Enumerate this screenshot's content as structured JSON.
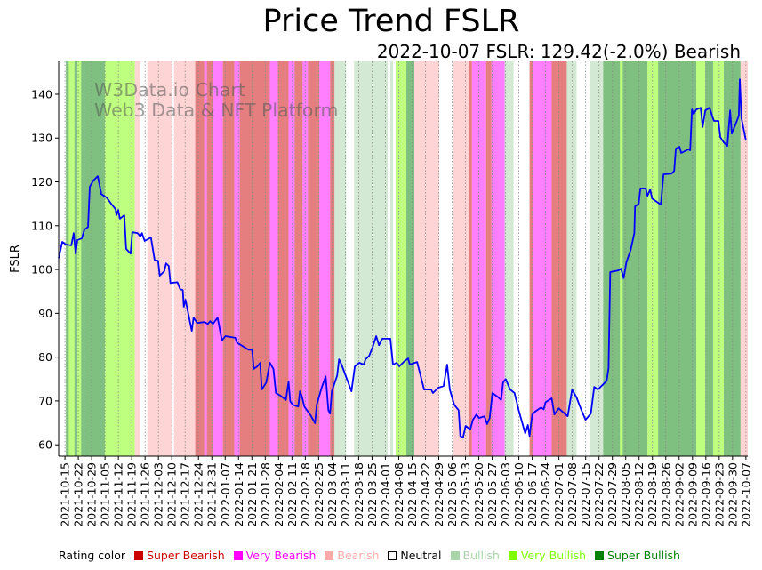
{
  "chart_data": {
    "type": "line",
    "title": "Price Trend FSLR",
    "subtitle": "2022-10-07 FSLR: 129.42(-2.0%) Bearish",
    "ylabel": "FSLR",
    "xlabel": "",
    "watermark": [
      "W3Data.io Chart",
      "Web3 Data & NFT Platform"
    ],
    "ylim": [
      57.4,
      147.5
    ],
    "xlim_day_offset": [
      -3.3,
      358
    ],
    "yticks": [
      60,
      70,
      80,
      90,
      100,
      110,
      120,
      130,
      140
    ],
    "xtick_labels": [
      "2021-10-15",
      "2021-10-22",
      "2021-10-29",
      "2021-11-05",
      "2021-11-12",
      "2021-11-19",
      "2021-11-26",
      "2021-12-03",
      "2021-12-10",
      "2021-12-17",
      "2021-12-24",
      "2021-12-31",
      "2022-01-07",
      "2022-01-14",
      "2022-01-21",
      "2022-01-28",
      "2022-02-04",
      "2022-02-11",
      "2022-02-18",
      "2022-02-25",
      "2022-03-04",
      "2022-03-11",
      "2022-03-18",
      "2022-03-25",
      "2022-04-01",
      "2022-04-08",
      "2022-04-15",
      "2022-04-22",
      "2022-04-29",
      "2022-05-06",
      "2022-05-13",
      "2022-05-20",
      "2022-05-27",
      "2022-06-03",
      "2022-06-10",
      "2022-06-17",
      "2022-06-24",
      "2022-07-01",
      "2022-07-08",
      "2022-07-15",
      "2022-07-22",
      "2022-07-29",
      "2022-08-05",
      "2022-08-12",
      "2022-08-19",
      "2022-08-26",
      "2022-09-02",
      "2022-09-09",
      "2022-09-16",
      "2022-09-23",
      "2022-09-30",
      "2022-10-07"
    ],
    "xtick_step_days": 7,
    "grid": "x dotted",
    "series": [
      {
        "name": "FSLR",
        "color": "#0000ff",
        "day_offset_from_first_tick": [
          -3.3,
          -1.4,
          0.5,
          3.3,
          4.6,
          5.6,
          6.5,
          8.8,
          10.2,
          12.1,
          13.0,
          14.9,
          17.2,
          19.1,
          21.9,
          24.6,
          26.5,
          27.0,
          27.9,
          28.8,
          31.1,
          32.1,
          34.4,
          35.3,
          38.1,
          39.5,
          40.4,
          41.8,
          45.1,
          47.0,
          48.8,
          49.7,
          52.1,
          53.0,
          54.4,
          55.3,
          59.0,
          60.4,
          61.8,
          62.3,
          63.2,
          66.5,
          67.4,
          69.3,
          73.0,
          74.9,
          76.2,
          77.6,
          80.0,
          82.3,
          84.1,
          89.3,
          90.2,
          91.6,
          96.2,
          98.1,
          99.0,
          100.9,
          102.3,
          103.2,
          105.5,
          107.4,
          109.3,
          110.6,
          113.0,
          115.8,
          117.2,
          118.1,
          119.5,
          122.3,
          123.2,
          124.1,
          125.5,
          128.8,
          131.1,
          132.0,
          134.4,
          136.7,
          138.1,
          139.0,
          139.9,
          142.7,
          143.7,
          145.0,
          150.2,
          152.0,
          154.3,
          156.7,
          157.6,
          159.5,
          161.3,
          163.2,
          164.6,
          166.4,
          170.6,
          172.0,
          173.9,
          175.3,
          177.6,
          179.9,
          180.8,
          184.6,
          188.3,
          192.0,
          192.9,
          195.7,
          198.5,
          200.4,
          201.8,
          204.1,
          206.4,
          207.3,
          208.7,
          210.1,
          212.5,
          213.9,
          215.7,
          217.1,
          219.9,
          221.3,
          222.7,
          224.1,
          227.3,
          228.7,
          229.7,
          231.1,
          233.4,
          235.7,
          238.0,
          241.3,
          242.7,
          243.6,
          245.0,
          246.9,
          249.7,
          251.0,
          252.0,
          255.2,
          256.6,
          258.9,
          263.6,
          265.9,
          268.2,
          270.6,
          272.9,
          275.7,
          277.5,
          279.4,
          282.2,
          284.0,
          285.0,
          285.9,
          290.1,
          291.5,
          292.9,
          294.3,
          296.6,
          298.5,
          298.9,
          300.8,
          301.7,
          304.5,
          305.4,
          306.8,
          307.8,
          312.4,
          313.8,
          318.0,
          319.4,
          320.3,
          322.2,
          323.1,
          326.8,
          327.8,
          328.7,
          329.6,
          331.0,
          333.3,
          334.3,
          335.7,
          338.0,
          339.4,
          340.3,
          342.6,
          343.6,
          345.4,
          347.3,
          348.7,
          349.6,
          351.9,
          353.3,
          353.8,
          354.7,
          357.0
        ],
        "values": [
          102.6,
          106.3,
          105.7,
          105.5,
          108.3,
          103.6,
          106.7,
          107.1,
          109.1,
          109.7,
          118.9,
          120.3,
          121.3,
          117.2,
          116.4,
          114.8,
          113.8,
          112.4,
          113.6,
          111.6,
          112.4,
          104.7,
          103.6,
          108.5,
          108.3,
          107.5,
          108.3,
          106.5,
          107.3,
          102.2,
          102.0,
          98.6,
          99.6,
          101.4,
          100.8,
          96.9,
          97.1,
          95.5,
          95.3,
          91.5,
          93.1,
          86.0,
          89.0,
          87.8,
          88.0,
          87.6,
          88.2,
          87.6,
          89.0,
          83.8,
          84.8,
          84.4,
          83.3,
          82.9,
          81.7,
          81.7,
          77.3,
          77.9,
          78.7,
          72.6,
          74.2,
          78.7,
          77.3,
          71.8,
          71.2,
          70.2,
          74.4,
          69.9,
          69.1,
          68.7,
          72.2,
          71.2,
          68.7,
          66.7,
          64.9,
          69.1,
          72.8,
          75.6,
          67.9,
          67.1,
          72.2,
          75.8,
          79.5,
          78.3,
          72.2,
          77.9,
          78.7,
          78.3,
          79.5,
          80.3,
          82.3,
          84.8,
          82.7,
          84.2,
          84.2,
          78.3,
          78.7,
          77.9,
          78.9,
          79.7,
          78.3,
          78.9,
          72.6,
          72.6,
          71.8,
          73.0,
          73.4,
          78.3,
          72.6,
          69.1,
          67.9,
          62.0,
          61.6,
          64.3,
          63.5,
          65.7,
          66.9,
          66.1,
          66.5,
          64.7,
          66.1,
          71.8,
          70.8,
          70.2,
          74.2,
          75.0,
          72.6,
          71.8,
          67.7,
          62.6,
          64.5,
          62.0,
          66.9,
          67.7,
          68.5,
          68.1,
          69.7,
          70.6,
          66.9,
          68.3,
          66.5,
          72.6,
          70.8,
          68.1,
          65.7,
          67.1,
          73.2,
          72.6,
          73.8,
          74.6,
          77.5,
          99.4,
          99.8,
          100.2,
          98.0,
          101.6,
          104.5,
          108.3,
          114.4,
          115.0,
          118.5,
          118.5,
          116.8,
          118.3,
          116.2,
          114.8,
          121.7,
          121.9,
          122.5,
          127.6,
          128.0,
          126.6,
          127.4,
          127.2,
          136.5,
          135.5,
          136.5,
          136.9,
          132.5,
          136.3,
          136.9,
          134.9,
          133.9,
          133.9,
          130.2,
          129.0,
          128.2,
          136.3,
          131.0,
          133.5,
          135.1,
          143.4,
          134.5,
          129.4
        ]
      }
    ],
    "rating_bands": [
      [
        0.5,
        2,
        "Super Bullish"
      ],
      [
        2,
        5,
        "Very Bullish"
      ],
      [
        5,
        6.5,
        "Super Bullish"
      ],
      [
        6.5,
        8.5,
        "Very Bullish"
      ],
      [
        8.5,
        20.9,
        "Super Bullish"
      ],
      [
        20.9,
        36.7,
        "Very Bullish"
      ],
      [
        36.7,
        39.5,
        "Bearish"
      ],
      [
        39.5,
        43.2,
        "Neutral"
      ],
      [
        43.2,
        55.8,
        "Bearish"
      ],
      [
        55.8,
        57.2,
        "Neutral"
      ],
      [
        57.2,
        68.3,
        "Bearish"
      ],
      [
        68.3,
        73,
        "Super Bearish"
      ],
      [
        73,
        74.4,
        "Very Bearish"
      ],
      [
        74.4,
        77.6,
        "Super Bearish"
      ],
      [
        77.6,
        82.8,
        "Very Bearish"
      ],
      [
        82.8,
        88.8,
        "Super Bearish"
      ],
      [
        88.8,
        91.6,
        "Very Bearish"
      ],
      [
        91.6,
        107.4,
        "Super Bearish"
      ],
      [
        107.4,
        111.6,
        "Very Bearish"
      ],
      [
        111.6,
        117.2,
        "Super Bearish"
      ],
      [
        117.2,
        120.4,
        "Very Bearish"
      ],
      [
        120.4,
        124.6,
        "Super Bearish"
      ],
      [
        124.6,
        127.4,
        "Very Bearish"
      ],
      [
        127.4,
        133.4,
        "Super Bearish"
      ],
      [
        133.4,
        139,
        "Very Bearish"
      ],
      [
        139,
        141.3,
        "Super Bearish"
      ],
      [
        141.3,
        147.4,
        "Bullish"
      ],
      [
        147.4,
        151.6,
        "Neutral"
      ],
      [
        151.6,
        169.2,
        "Bullish"
      ],
      [
        169.2,
        170.6,
        "Neutral"
      ],
      [
        170.6,
        172,
        "Bullish"
      ],
      [
        172,
        173.4,
        "Neutral"
      ],
      [
        173.4,
        179,
        "Very Bullish"
      ],
      [
        179,
        183.2,
        "Super Bullish"
      ],
      [
        183.2,
        196.2,
        "Bearish"
      ],
      [
        196.2,
        203.6,
        "Neutral"
      ],
      [
        203.6,
        212,
        "Bearish"
      ],
      [
        212,
        213.4,
        "Super Bearish"
      ],
      [
        213.4,
        220.8,
        "Very Bearish"
      ],
      [
        220.8,
        223.6,
        "Super Bearish"
      ],
      [
        223.6,
        230.6,
        "Very Bearish"
      ],
      [
        230.6,
        235.2,
        "Bullish"
      ],
      [
        235.2,
        243.6,
        "Neutral"
      ],
      [
        243.6,
        245.5,
        "Super Bearish"
      ],
      [
        245.5,
        255.2,
        "Very Bearish"
      ],
      [
        255.2,
        263.1,
        "Super Bearish"
      ],
      [
        263.1,
        268.2,
        "Bullish"
      ],
      [
        268.2,
        275.2,
        "Neutral"
      ],
      [
        275.2,
        282.2,
        "Bullish"
      ],
      [
        282.2,
        291,
        "Super Bullish"
      ],
      [
        291,
        292.4,
        "Very Bullish"
      ],
      [
        292.4,
        305.4,
        "Super Bullish"
      ],
      [
        305.4,
        311,
        "Very Bullish"
      ],
      [
        311,
        331,
        "Super Bullish"
      ],
      [
        331,
        335.7,
        "Very Bullish"
      ],
      [
        335.7,
        339.8,
        "Super Bullish"
      ],
      [
        339.8,
        345.4,
        "Very Bullish"
      ],
      [
        345.4,
        354.2,
        "Super Bullish"
      ],
      [
        354.2,
        358,
        "Bearish"
      ]
    ],
    "legend": {
      "title": "Rating color",
      "placement": "bottom",
      "entries": [
        {
          "label": "Super Bearish",
          "color": "#cc0000"
        },
        {
          "label": "Very Bearish",
          "color": "#ff00ff"
        },
        {
          "label": "Bearish",
          "color": "#ffaaaa"
        },
        {
          "label": "Neutral",
          "color": "#ffffff"
        },
        {
          "label": "Bullish",
          "color": "#aad4aa"
        },
        {
          "label": "Very Bullish",
          "color": "#80ff00"
        },
        {
          "label": "Super Bullish",
          "color": "#008000"
        }
      ]
    }
  }
}
